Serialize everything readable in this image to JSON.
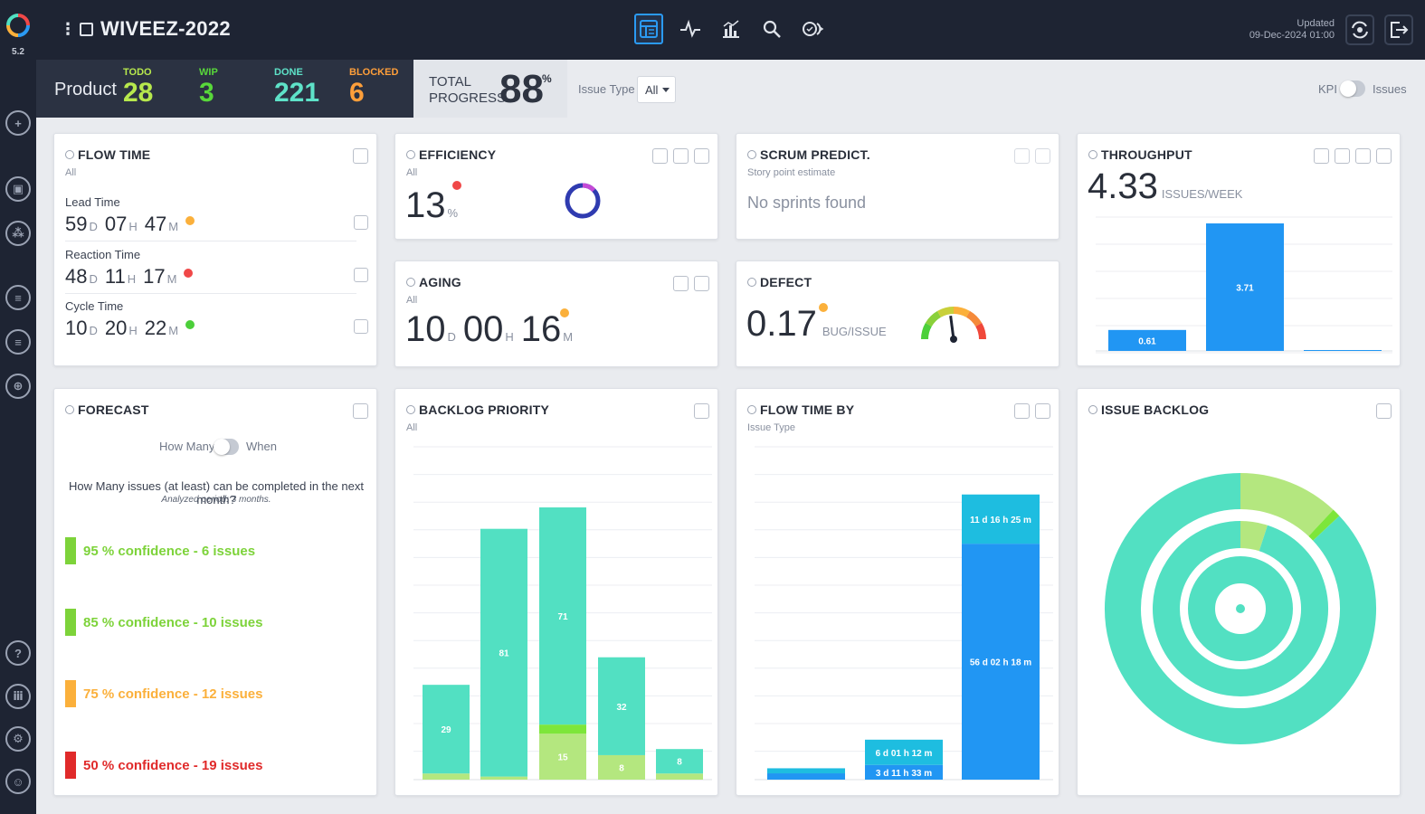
{
  "app": {
    "version": "5.2",
    "project_title": "WIVEEZ-2022",
    "updated_label": "Updated",
    "updated_value": "09-Dec-2024 01:00"
  },
  "colors": {
    "accent": "#2b9af3",
    "teal": "#52e0c2",
    "lime": "#b4e77f",
    "green": "#7dd33a",
    "orange": "#fbb03b",
    "red": "#e02a2a"
  },
  "stats": {
    "product_label": "Product",
    "todo": {
      "label": "TODO",
      "value": "28",
      "color": "#b7e84d"
    },
    "wip": {
      "label": "WIP",
      "value": "3",
      "color": "#58d83a"
    },
    "done": {
      "label": "DONE",
      "value": "221",
      "color": "#5ee2c8"
    },
    "blocked": {
      "label": "BLOCKED",
      "value": "6",
      "color": "#ff9f3a"
    }
  },
  "progress": {
    "label_line1": "TOTAL",
    "label_line2": "PROGRESS",
    "value": "88",
    "unit": "%"
  },
  "filters": {
    "issue_type_label": "Issue Type",
    "issue_type_value": "All",
    "kpi_label": "KPI",
    "issues_label": "Issues"
  },
  "flow_time": {
    "title": "FLOW TIME",
    "subtitle": "All",
    "rows": [
      {
        "label": "Lead Time",
        "d": "59",
        "h": "07",
        "m": "47",
        "dot": "#fbb03b"
      },
      {
        "label": "Reaction Time",
        "d": "48",
        "h": "11",
        "m": "17",
        "dot": "#f04848"
      },
      {
        "label": "Cycle Time",
        "d": "10",
        "h": "20",
        "m": "22",
        "dot": "#4ccf3a"
      }
    ],
    "units": {
      "d": "D",
      "h": "H",
      "m": "M"
    }
  },
  "efficiency": {
    "title": "EFFICIENCY",
    "subtitle": "All",
    "value": "13",
    "unit": "%",
    "dot": "#f04848"
  },
  "aging": {
    "title": "AGING",
    "subtitle": "All",
    "d": "10",
    "h": "00",
    "m": "16",
    "units": {
      "d": "D",
      "h": "H",
      "m": "M"
    },
    "dot": "#fbb03b"
  },
  "scrum": {
    "title": "SCRUM PREDICT.",
    "subtitle": "Story point estimate",
    "message": "No sprints found"
  },
  "defect": {
    "title": "DEFECT",
    "value": "0.17",
    "unit": "BUG/ISSUE",
    "dot": "#fbb03b"
  },
  "throughput": {
    "title": "THROUGHPUT",
    "value": "4.33",
    "unit": "ISSUES/WEEK"
  },
  "forecast": {
    "title": "FORECAST",
    "toggle_left": "How Many",
    "toggle_right": "When",
    "question": "How Many issues (at least) can be completed in the next month?",
    "analyzed": "Analyzed period: 3 months.",
    "items": [
      {
        "label": "95 % confidence - 6 issues",
        "color": "#7dd33a"
      },
      {
        "label": "85 % confidence - 10 issues",
        "color": "#7dd33a"
      },
      {
        "label": "75 % confidence - 12 issues",
        "color": "#fbb03b"
      },
      {
        "label": "50 % confidence - 19 issues",
        "color": "#e02a2a"
      }
    ]
  },
  "backlog_priority": {
    "title": "BACKLOG PRIORITY",
    "subtitle": "All"
  },
  "flow_time_by": {
    "title": "FLOW TIME BY",
    "subtitle": "Issue Type"
  },
  "issue_backlog": {
    "title": "ISSUE BACKLOG"
  },
  "chart_data": [
    {
      "type": "bar",
      "title": "THROUGHPUT",
      "values": [
        0.61,
        3.71,
        0.0
      ],
      "data_labels": [
        "0.61",
        "3.71",
        ""
      ],
      "ylim": [
        0,
        4
      ]
    },
    {
      "type": "bar",
      "title": "BACKLOG PRIORITY",
      "stacked": true,
      "ylim": [
        0,
        110
      ],
      "series": [
        {
          "values": [
            29,
            81,
            71,
            32,
            8
          ],
          "labels": [
            "29",
            "81",
            "71",
            "32",
            "8"
          ],
          "color": "#52e0c2"
        },
        {
          "values": [
            0,
            0,
            3,
            0,
            0
          ],
          "labels": [
            "",
            "",
            "",
            "",
            ""
          ],
          "color": "#7de63a"
        },
        {
          "values": [
            2,
            1,
            15,
            8,
            2
          ],
          "labels": [
            "",
            "",
            "15",
            "8",
            ""
          ],
          "color": "#b4e77f"
        }
      ]
    },
    {
      "type": "bar",
      "title": "FLOW TIME BY",
      "stacked": true,
      "ylim": [
        0,
        80
      ],
      "series": [
        {
          "values": [
            1.5,
            3.5,
            56.1
          ],
          "labels": [
            "",
            "3 d 11 h 33 m",
            "56 d 02 h 18 m"
          ],
          "color": "#2196f3"
        },
        {
          "values": [
            1.2,
            6.0,
            11.7
          ],
          "labels": [
            "",
            "6 d 01 h 12 m",
            "11 d 16 h 25 m"
          ],
          "color": "#1ebde0"
        }
      ]
    },
    {
      "type": "pie",
      "title": "ISSUE BACKLOG",
      "rings": [
        {
          "name": "outer",
          "slices": [
            {
              "value": 12,
              "color": "#b4e77f"
            },
            {
              "value": 1,
              "color": "#7de63a"
            },
            {
              "value": 87,
              "color": "#52e0c2"
            }
          ]
        },
        {
          "name": "middle",
          "slices": [
            {
              "value": 5,
              "color": "#b4e77f"
            },
            {
              "value": 95,
              "color": "#52e0c2"
            }
          ]
        },
        {
          "name": "inner",
          "slices": [
            {
              "value": 100,
              "color": "#52e0c2"
            }
          ]
        }
      ]
    },
    {
      "type": "gauge",
      "title": "DEFECT",
      "value": 0.17
    },
    {
      "type": "pie",
      "title": "EFFICIENCY",
      "values": [
        13,
        87
      ]
    }
  ]
}
